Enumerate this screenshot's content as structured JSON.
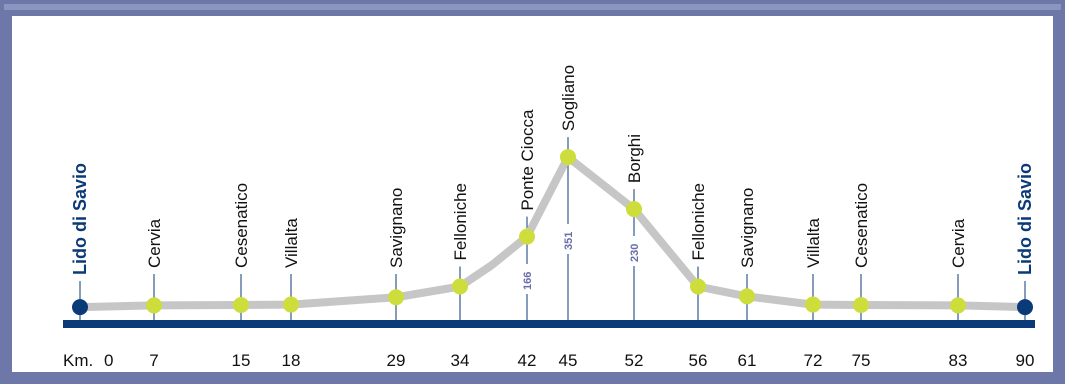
{
  "colors": {
    "frame": "#6d78a8",
    "frame_inner": "#8b95bf",
    "axis_bar": "#0b3a78",
    "tick": "#0b3a78",
    "profile": "#c6c6c6",
    "stop": "#cddd3c",
    "terminal": "#0b3a78",
    "altitude_label": "#6a6ea8"
  },
  "chart_data": {
    "type": "line",
    "title": "",
    "xlabel": "",
    "ylabel": "",
    "km_prefix": "Km.",
    "series": [
      {
        "name": "",
        "points": [
          {
            "km": 0,
            "place": "Lido di Savio",
            "km_label": "0",
            "alt": 2,
            "terminal": true
          },
          {
            "km": 7,
            "place": "Cervia",
            "km_label": "7",
            "alt": 6
          },
          {
            "km": 15,
            "place": "Cesenatico",
            "km_label": "15",
            "alt": 7
          },
          {
            "km": 18,
            "place": "Villalta",
            "km_label": "18",
            "alt": 8
          },
          {
            "km": 29,
            "place": "Savignano",
            "km_label": "29",
            "alt": 25
          },
          {
            "km": 34,
            "place": "Felloniche",
            "km_label": "34",
            "alt": 50
          },
          {
            "km": 42,
            "place": "Ponte Ciocca",
            "km_label": "42",
            "alt": 166,
            "alt_label": "166"
          },
          {
            "km": 45,
            "place": "Sogliano",
            "km_label": "45",
            "alt": 351,
            "alt_label": "351"
          },
          {
            "km": 52,
            "place": "Borghi",
            "km_label": "52",
            "alt": 230,
            "alt_label": "230"
          },
          {
            "km": 56,
            "place": "Felloniche",
            "km_label": "56",
            "alt": 50
          },
          {
            "km": 61,
            "place": "Savignano",
            "km_label": "61",
            "alt": 27
          },
          {
            "km": 72,
            "place": "Villalta",
            "km_label": "72",
            "alt": 8
          },
          {
            "km": 75,
            "place": "Cesenatico",
            "km_label": "75",
            "alt": 7
          },
          {
            "km": 83,
            "place": "Cervia",
            "km_label": "83",
            "alt": 6
          },
          {
            "km": 90,
            "place": "Lido di Savio",
            "km_label": "90",
            "alt": 2,
            "terminal": true
          }
        ]
      }
    ]
  }
}
